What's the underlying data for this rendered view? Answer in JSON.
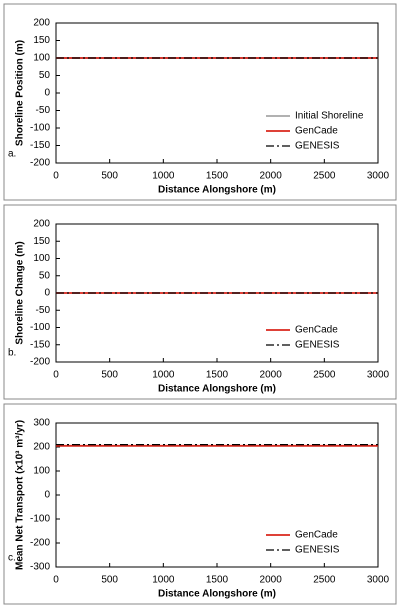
{
  "chart_data": [
    {
      "type": "line",
      "panel_label": "a.",
      "xlabel": "Distance Alongshore (m)",
      "ylabel": "Shoreline Position (m)",
      "x": [
        0,
        3000
      ],
      "xlim": [
        0,
        3000
      ],
      "xticks": [
        0,
        500,
        1000,
        1500,
        2000,
        2500,
        3000
      ],
      "ylim": [
        -200,
        200
      ],
      "yticks": [
        -200,
        -150,
        -100,
        -50,
        0,
        50,
        100,
        150,
        200
      ],
      "grid": false,
      "legend": "lower right",
      "series": [
        {
          "name": "Initial Shoreline",
          "color": "#a6a6a6",
          "dash": "solid",
          "values": [
            100,
            100
          ]
        },
        {
          "name": "GenCade",
          "color": "#d9261c",
          "dash": "solid",
          "values": [
            100,
            100
          ]
        },
        {
          "name": "GENESIS",
          "color": "#000000",
          "dash": "dash-dot",
          "values": [
            100,
            100
          ]
        }
      ]
    },
    {
      "type": "line",
      "panel_label": "b.",
      "xlabel": "Distance Alongshore (m)",
      "ylabel": "Shoreline Change (m)",
      "x": [
        0,
        3000
      ],
      "xlim": [
        0,
        3000
      ],
      "xticks": [
        0,
        500,
        1000,
        1500,
        2000,
        2500,
        3000
      ],
      "ylim": [
        -200,
        200
      ],
      "yticks": [
        -200,
        -150,
        -100,
        -50,
        0,
        50,
        100,
        150,
        200
      ],
      "grid": false,
      "legend": "lower right",
      "series": [
        {
          "name": "GenCade",
          "color": "#d9261c",
          "dash": "solid",
          "values": [
            0,
            0
          ]
        },
        {
          "name": "GENESIS",
          "color": "#000000",
          "dash": "dash-dot",
          "values": [
            0,
            0
          ]
        }
      ]
    },
    {
      "type": "line",
      "panel_label": "c.",
      "xlabel": "Distance Alongshore (m)",
      "ylabel": "Mean Net Transport (x10³ m³/yr)",
      "x": [
        0,
        3000
      ],
      "xlim": [
        0,
        3000
      ],
      "xticks": [
        0,
        500,
        1000,
        1500,
        2000,
        2500,
        3000
      ],
      "ylim": [
        -300,
        300
      ],
      "yticks": [
        -300,
        -200,
        -100,
        0,
        100,
        200,
        300
      ],
      "grid": false,
      "legend": "lower right",
      "series": [
        {
          "name": "GenCade",
          "color": "#d9261c",
          "dash": "solid",
          "values": [
            205,
            205
          ]
        },
        {
          "name": "GENESIS",
          "color": "#000000",
          "dash": "dash-dot",
          "values": [
            210,
            210
          ]
        }
      ]
    }
  ]
}
